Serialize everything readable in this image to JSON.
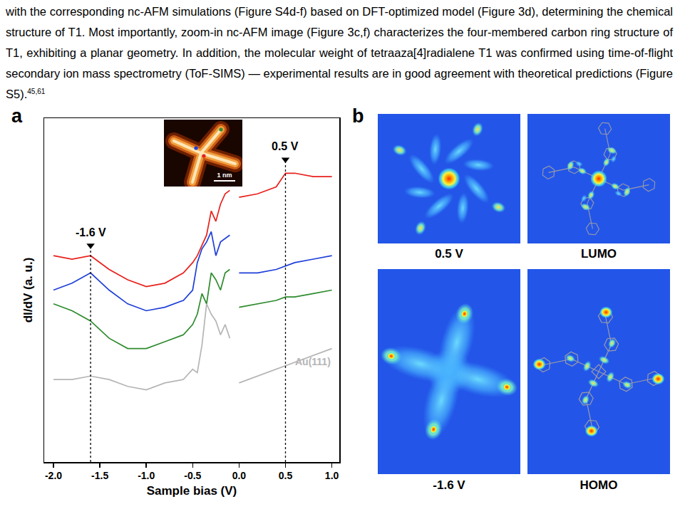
{
  "document": {
    "paragraph": "with the corresponding nc-AFM simulations (Figure S4d-f) based on DFT-optimized model (Figure 3d), determining the chemical structure of T1. Most importantly, zoom-in nc-AFM image (Figure 3c,f) characterizes the four-membered carbon ring structure of T1, exhibiting a planar geometry. In addition, the molecular weight of tetraaza[4]radialene T1 was confirmed using time-of-flight secondary ion mass spectrometry (ToF-SIMS) — experimental results are in good agreement with theoretical predictions (Figure S5).",
    "citation": "45,61",
    "panel_a": {
      "label": "a",
      "inset_scale_bar": "1 nm",
      "inset_point_colors": [
        "#2e8b2e",
        "#1e3fd8",
        "#e8201c"
      ]
    },
    "panel_b": {
      "label": "b",
      "images": [
        {
          "caption": "0.5 V"
        },
        {
          "caption": "LUMO"
        },
        {
          "caption": "-1.6 V"
        },
        {
          "caption": "HOMO"
        }
      ]
    }
  },
  "chart_data": {
    "type": "line",
    "x_label": "Sample bias (V)",
    "y_label": "dI/dV (a. u.)",
    "x": [
      -2.0,
      -1.8,
      -1.6,
      -1.4,
      -1.2,
      -1.0,
      -0.8,
      -0.6,
      -0.5,
      -0.45,
      -0.4,
      -0.35,
      -0.3,
      -0.25,
      -0.2,
      -0.15,
      -0.1,
      -0.05,
      0.0,
      0.2,
      0.4,
      0.5,
      0.6,
      0.8,
      1.0
    ],
    "series": [
      {
        "color": "#e8201c",
        "values": [
          6.0,
          5.9,
          6.0,
          5.6,
          5.3,
          5.1,
          5.2,
          5.5,
          5.8,
          6.0,
          6.3,
          6.6,
          7.3,
          7.0,
          7.5,
          7.8,
          7.9,
          null,
          7.7,
          7.8,
          8.0,
          8.4,
          8.4,
          8.3,
          8.3
        ]
      },
      {
        "color": "#1e3fd8",
        "values": [
          5.0,
          5.2,
          5.5,
          5.0,
          4.6,
          4.4,
          4.5,
          4.7,
          5.0,
          5.8,
          6.2,
          6.4,
          6.7,
          6.0,
          6.4,
          6.5,
          6.6,
          null,
          5.5,
          5.5,
          5.6,
          5.7,
          5.8,
          5.9,
          6.0
        ]
      },
      {
        "color": "#2e8b2e",
        "values": [
          4.6,
          4.4,
          4.1,
          3.6,
          3.3,
          3.3,
          3.5,
          3.7,
          4.0,
          4.3,
          4.9,
          4.6,
          5.5,
          5.3,
          5.0,
          5.5,
          5.6,
          null,
          4.5,
          4.6,
          4.7,
          4.8,
          4.8,
          4.9,
          5.0
        ]
      },
      {
        "name": "Au(111)",
        "color": "#b5b5b5",
        "values": [
          2.4,
          2.4,
          2.5,
          2.4,
          2.2,
          2.1,
          2.3,
          2.4,
          2.7,
          2.6,
          3.4,
          4.6,
          4.3,
          4.1,
          3.7,
          4.0,
          3.6,
          null,
          2.3,
          2.5,
          2.7,
          2.8,
          2.9,
          3.1,
          3.3
        ]
      }
    ],
    "annotations": [
      {
        "x": -1.6,
        "y": 6.3,
        "label": "-1.6 V"
      },
      {
        "x": 0.5,
        "y": 8.8,
        "label": "0.5 V"
      }
    ],
    "xlim": [
      -2.1,
      1.08
    ],
    "xticks": [
      {
        "value": -2,
        "label": "-2.0"
      },
      -1.5,
      {
        "value": -1,
        "label": "-1.0"
      },
      -0.5,
      {
        "value": 0,
        "label": "0.0"
      },
      0.5,
      {
        "value": 1,
        "label": "1.0"
      }
    ],
    "ylim": [
      0,
      10
    ],
    "tick_labels": "x",
    "grid": false
  }
}
